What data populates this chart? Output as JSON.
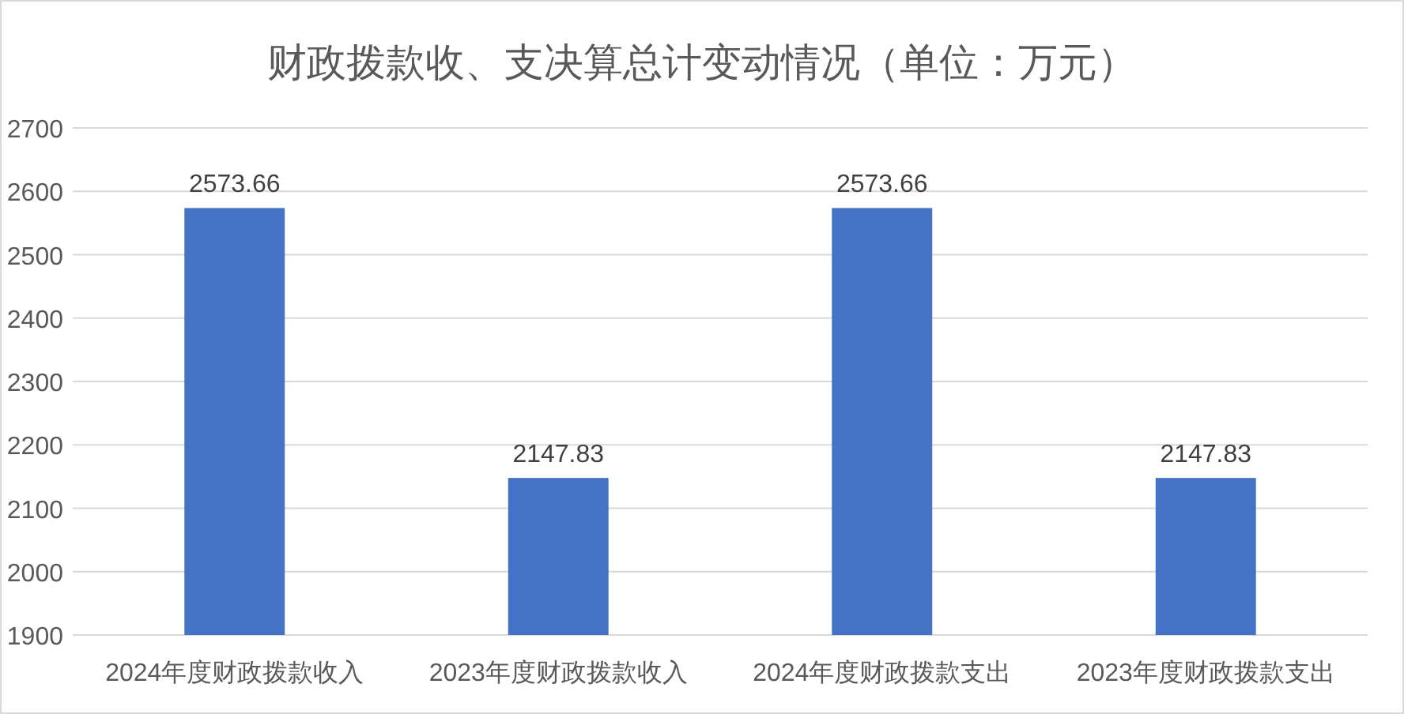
{
  "chart_data": {
    "type": "bar",
    "title": "财政拨款收、支决算总计变动情况（单位：万元）",
    "categories": [
      "2024年度财政拨款收入",
      "2023年度财政拨款收入",
      "2024年度财政拨款支出",
      "2023年度财政拨款支出"
    ],
    "values": [
      2573.66,
      2147.83,
      2573.66,
      2147.83
    ],
    "color": "#4472c4",
    "ylim": [
      1900,
      2700
    ],
    "yticks": [
      1900,
      2000,
      2100,
      2200,
      2300,
      2400,
      2500,
      2600,
      2700
    ],
    "grid": "y",
    "data_labels": true,
    "legend": false
  }
}
